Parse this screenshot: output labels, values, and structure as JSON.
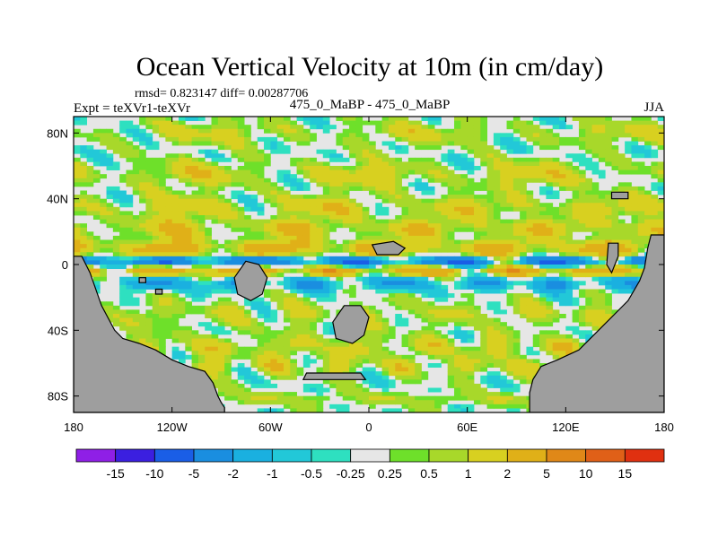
{
  "chart_data": {
    "type": "heatmap",
    "title": "Ocean Vertical Velocity at 10m (in cm/day)",
    "stats": "rmsd= 0.823147 diff= 0.00287706",
    "experiment": "Expt = teXVr1-teXVr",
    "subtitle": "475_0_MaBP - 475_0_MaBP",
    "season": "JJA",
    "xlim": [
      -180,
      180
    ],
    "ylim": [
      -90,
      90
    ],
    "x_ticks": [
      {
        "value": -180,
        "label": "180"
      },
      {
        "value": -120,
        "label": "120W"
      },
      {
        "value": -60,
        "label": "60W"
      },
      {
        "value": 0,
        "label": "0"
      },
      {
        "value": 60,
        "label": "60E"
      },
      {
        "value": 120,
        "label": "120E"
      },
      {
        "value": 180,
        "label": "180"
      }
    ],
    "y_ticks": [
      {
        "value": 80,
        "label": "80N"
      },
      {
        "value": 40,
        "label": "40N"
      },
      {
        "value": 0,
        "label": "0"
      },
      {
        "value": -40,
        "label": "40S"
      },
      {
        "value": -80,
        "label": "80S"
      }
    ],
    "colorbar": {
      "labels": [
        "-15",
        "-10",
        "-5",
        "-2",
        "-1",
        "-0.5",
        "-0.25",
        "0.25",
        "0.5",
        "1",
        "2",
        "5",
        "10",
        "15"
      ],
      "colors": [
        "#8f1fe6",
        "#3b1fe0",
        "#1a5ee6",
        "#1a8ee0",
        "#1ab0e0",
        "#22c8d8",
        "#2ee0c0",
        "#e6e6e6",
        "#6ee02a",
        "#a8d82a",
        "#d8d020",
        "#e0b018",
        "#e08818",
        "#e06018",
        "#e03010"
      ]
    },
    "bands": [
      {
        "lat": 80,
        "amp": 1.2,
        "width": 7
      },
      {
        "lat": 55,
        "amp": 1.6,
        "width": 8
      },
      {
        "lat": 35,
        "amp": 1.8,
        "width": 7
      },
      {
        "lat": 22,
        "amp": 2.2,
        "width": 6
      },
      {
        "lat": 10,
        "amp": 3.5,
        "width": 5
      },
      {
        "lat": 2,
        "amp": -6,
        "width": 2.5
      },
      {
        "lat": -4,
        "amp": 5,
        "width": 2.5
      },
      {
        "lat": -12,
        "amp": -2.5,
        "width": 4
      },
      {
        "lat": -30,
        "amp": 1.2,
        "width": 8
      },
      {
        "lat": -50,
        "amp": 1.6,
        "width": 7
      },
      {
        "lat": -62,
        "amp": 1.4,
        "width": 6
      },
      {
        "lat": -82,
        "amp": 1.2,
        "width": 4
      }
    ],
    "land": [
      {
        "name": "west-continent",
        "points": [
          [
            -180,
            5
          ],
          [
            -175,
            5
          ],
          [
            -170,
            -5
          ],
          [
            -163,
            -25
          ],
          [
            -155,
            -40
          ],
          [
            -150,
            -45
          ],
          [
            -140,
            -48
          ],
          [
            -130,
            -52
          ],
          [
            -120,
            -58
          ],
          [
            -110,
            -62
          ],
          [
            -100,
            -65
          ],
          [
            -95,
            -72
          ],
          [
            -92,
            -80
          ],
          [
            -90,
            -84
          ],
          [
            -88,
            -87
          ],
          [
            -88,
            -90
          ],
          [
            -180,
            -90
          ]
        ]
      },
      {
        "name": "east-continent",
        "points": [
          [
            180,
            18
          ],
          [
            172,
            18
          ],
          [
            170,
            10
          ],
          [
            168,
            -2
          ],
          [
            165,
            -10
          ],
          [
            158,
            -22
          ],
          [
            150,
            -30
          ],
          [
            140,
            -40
          ],
          [
            128,
            -52
          ],
          [
            115,
            -58
          ],
          [
            105,
            -62
          ],
          [
            100,
            -70
          ],
          [
            98,
            -78
          ],
          [
            98,
            -87
          ],
          [
            98,
            -90
          ],
          [
            180,
            -90
          ]
        ]
      },
      {
        "name": "mid-south-island",
        "points": [
          [
            -15,
            -25
          ],
          [
            -5,
            -25
          ],
          [
            0,
            -32
          ],
          [
            -3,
            -43
          ],
          [
            -10,
            -48
          ],
          [
            -20,
            -45
          ],
          [
            -22,
            -35
          ]
        ]
      },
      {
        "name": "west-island",
        "points": [
          [
            -75,
            2
          ],
          [
            -67,
            0
          ],
          [
            -62,
            -8
          ],
          [
            -65,
            -18
          ],
          [
            -72,
            -22
          ],
          [
            -80,
            -18
          ],
          [
            -82,
            -8
          ]
        ]
      },
      {
        "name": "equatorial-island",
        "points": [
          [
            2,
            12
          ],
          [
            15,
            14
          ],
          [
            22,
            10
          ],
          [
            18,
            6
          ],
          [
            5,
            6
          ]
        ]
      },
      {
        "name": "south-strip",
        "points": [
          [
            -38,
            -66
          ],
          [
            -5,
            -66
          ],
          [
            -2,
            -70
          ],
          [
            -40,
            -70
          ]
        ]
      },
      {
        "name": "east-islet",
        "points": [
          [
            146,
            13
          ],
          [
            152,
            13
          ],
          [
            152,
            5
          ],
          [
            148,
            -5
          ],
          [
            145,
            0
          ]
        ]
      },
      {
        "name": "ne-islet",
        "points": [
          [
            148,
            44
          ],
          [
            158,
            44
          ],
          [
            158,
            40
          ],
          [
            148,
            40
          ]
        ]
      },
      {
        "name": "small-islet-1",
        "points": [
          [
            -140,
            -8
          ],
          [
            -136,
            -8
          ],
          [
            -136,
            -11
          ],
          [
            -140,
            -11
          ]
        ]
      },
      {
        "name": "small-islet-2",
        "points": [
          [
            -130,
            -15
          ],
          [
            -126,
            -15
          ],
          [
            -126,
            -18
          ],
          [
            -130,
            -18
          ]
        ]
      }
    ]
  }
}
